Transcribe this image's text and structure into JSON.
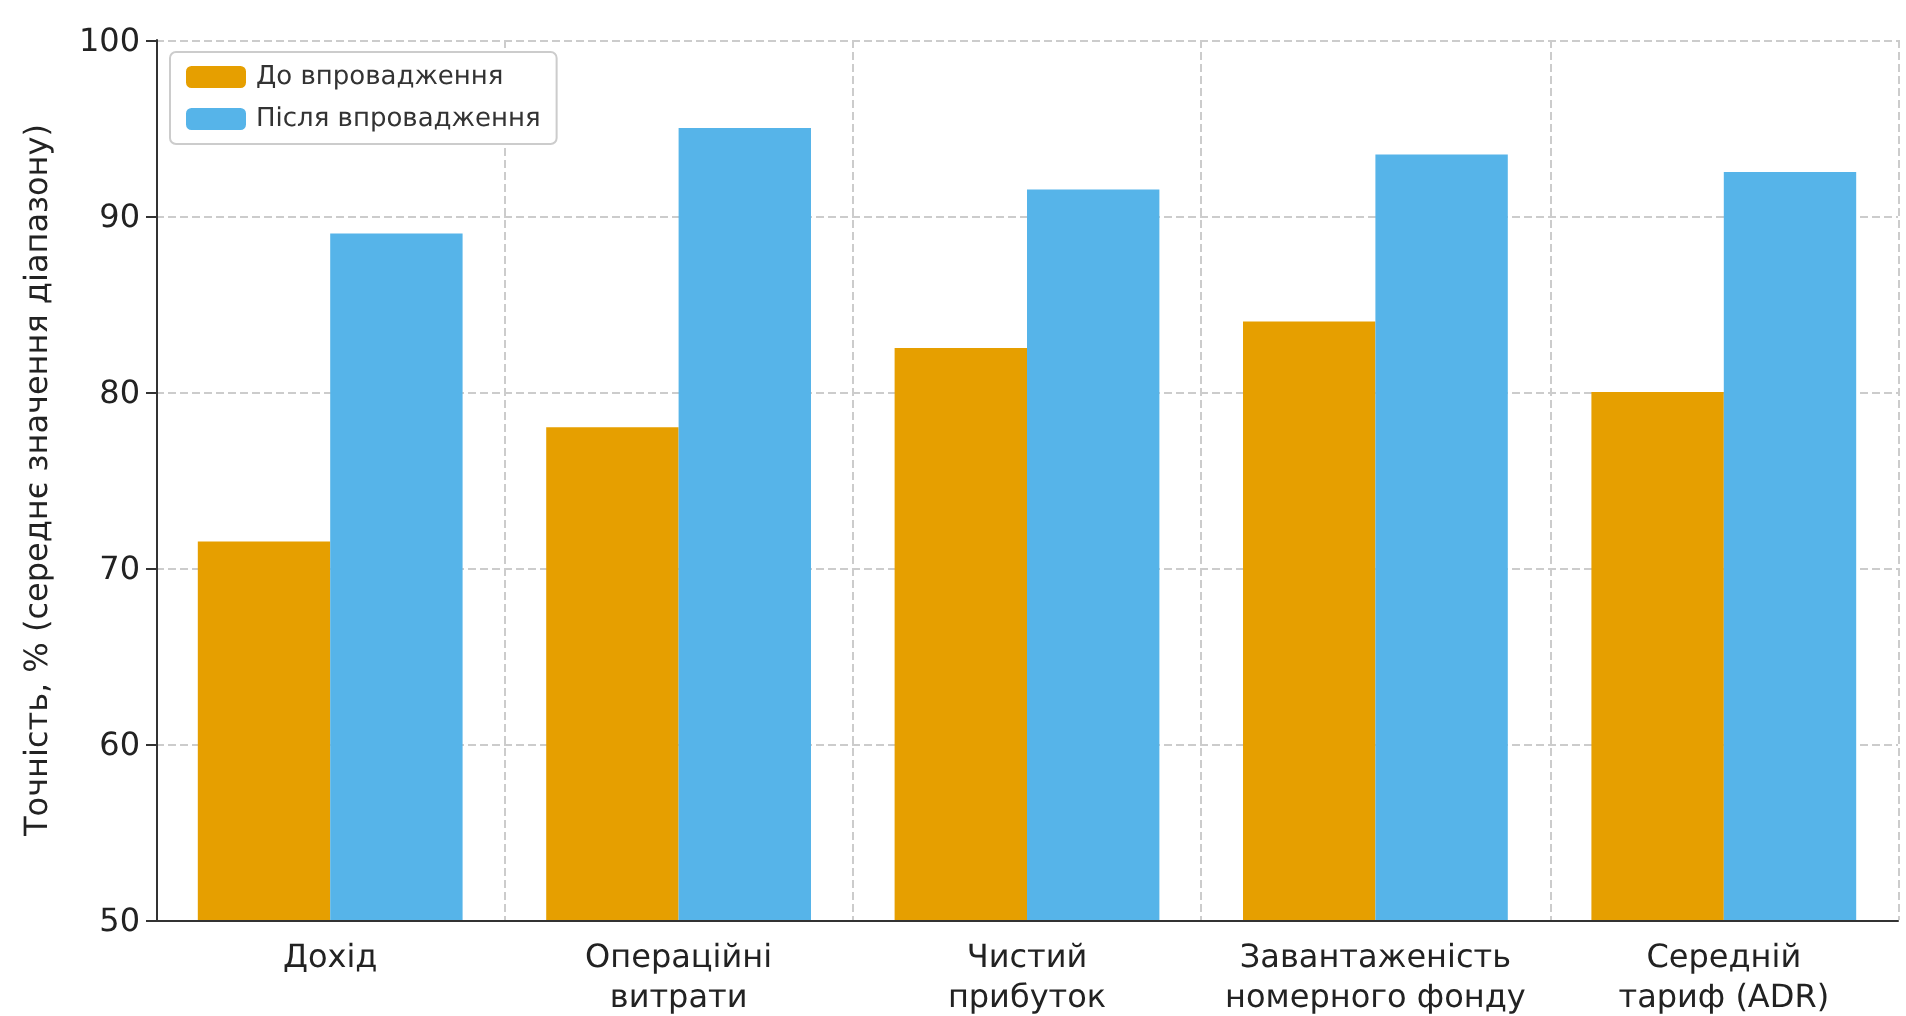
{
  "chart_data": {
    "type": "bar",
    "ylabel": "Точність, % (середнє значення діапазону)",
    "categories": [
      "Дохід",
      "Операційні\nвитрати",
      "Чистий\nприбуток",
      "Завантаженість\nномерного фонду",
      "Середній\nтариф (ADR)"
    ],
    "series": [
      {
        "name": "До впровадження",
        "color": "#e69f00",
        "values": [
          71.5,
          78,
          82.5,
          84,
          80
        ]
      },
      {
        "name": "Після впровадження",
        "color": "#56b4e9",
        "values": [
          89,
          95,
          91.5,
          93.5,
          92.5
        ]
      }
    ],
    "ylim": [
      50,
      100
    ],
    "yticks": [
      50,
      60,
      70,
      80,
      90,
      100
    ],
    "grid": true,
    "legend": "top left"
  }
}
